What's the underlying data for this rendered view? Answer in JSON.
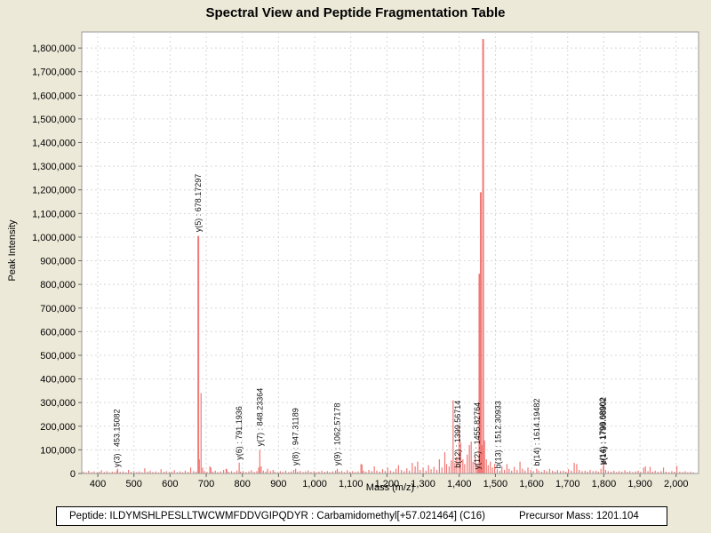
{
  "window": {
    "title": "Spectral View and Peptide Fragmentation Table"
  },
  "footer": {
    "peptide_label": "Peptide: ILDYMSHLPESLLTWCWMFDDVGIPQDYR : Carbamidomethyl[+57.021464] (C16)",
    "precursor_label": "Precursor Mass: 1201.104"
  },
  "colors": {
    "window_bg": "#ece9d8",
    "plot_bg": "#ffffff",
    "plot_border": "#9a9a9a",
    "grid": "#d8d8d8",
    "tick": "#666666",
    "peak": "#f07874",
    "annotation_text": "#111111"
  },
  "chart_data": {
    "type": "bar",
    "title": "Spectral View and Peptide Fragmentation Table",
    "xlabel": "Mass (m/z)",
    "ylabel": "Peak Intensity",
    "xlim": [
      355.7,
      2062
    ],
    "ylim": [
      0,
      1868000
    ],
    "x_ticks": [
      400,
      500,
      600,
      700,
      800,
      900,
      1000,
      1100,
      1200,
      1300,
      1400,
      1500,
      1600,
      1700,
      1800,
      1900,
      2000
    ],
    "y_ticks": [
      0,
      100000,
      200000,
      300000,
      400000,
      500000,
      600000,
      700000,
      800000,
      900000,
      1000000,
      1100000,
      1200000,
      1300000,
      1400000,
      1500000,
      1600000,
      1700000,
      1800000
    ],
    "grid": true,
    "legend": null,
    "annotations": [
      {
        "text": "y(3) : 453.15082",
        "mz": 453.15,
        "base": 15000
      },
      {
        "text": "y(5) : 678.17297",
        "mz": 678.17,
        "base": 1010000
      },
      {
        "text": "y(6) : 791.1936",
        "mz": 791.19,
        "base": 46000
      },
      {
        "text": "y(7) : 848.23364",
        "mz": 848.23,
        "base": 104000
      },
      {
        "text": "y(8) : 947.31189",
        "mz": 947.31,
        "base": 22000
      },
      {
        "text": "y(9) : 1062.57178",
        "mz": 1062.57,
        "base": 22000
      },
      {
        "text": "b(12) : 1399.56714",
        "mz": 1396.0,
        "base": 12000
      },
      {
        "text": "y(12) : 1455.82764",
        "mz": 1450.0,
        "base": 6000
      },
      {
        "text": "b(13) : 1512.30933",
        "mz": 1508.0,
        "base": 10000
      },
      {
        "text": "b(14) : 1614.19482",
        "mz": 1614.19,
        "base": 20000
      },
      {
        "text": "y(14) : 1798.68902",
        "mz": 1796.5,
        "base": 26000
      },
      {
        "text": "b(16) : 1799.08902",
        "mz": 1799.1,
        "base": 26000
      }
    ],
    "peaks": [
      [
        360,
        8000
      ],
      [
        368,
        5000
      ],
      [
        375,
        12000
      ],
      [
        383,
        6000
      ],
      [
        390,
        9000
      ],
      [
        398,
        5000
      ],
      [
        404,
        7000
      ],
      [
        410,
        14000
      ],
      [
        418,
        6000
      ],
      [
        425,
        10000
      ],
      [
        432,
        5000
      ],
      [
        440,
        8000
      ],
      [
        447,
        6000
      ],
      [
        453.15,
        12000
      ],
      [
        455,
        20000
      ],
      [
        462,
        7000
      ],
      [
        470,
        9000
      ],
      [
        478,
        5000
      ],
      [
        485,
        15000
      ],
      [
        492,
        7000
      ],
      [
        500,
        10000
      ],
      [
        508,
        6000
      ],
      [
        515,
        9000
      ],
      [
        523,
        5000
      ],
      [
        530,
        22000
      ],
      [
        538,
        8000
      ],
      [
        545,
        12000
      ],
      [
        552,
        6000
      ],
      [
        560,
        9000
      ],
      [
        568,
        5000
      ],
      [
        575,
        18000
      ],
      [
        583,
        7000
      ],
      [
        590,
        10000
      ],
      [
        598,
        6000
      ],
      [
        605,
        8000
      ],
      [
        612,
        14000
      ],
      [
        620,
        6000
      ],
      [
        628,
        9000
      ],
      [
        635,
        5000
      ],
      [
        642,
        12000
      ],
      [
        650,
        7000
      ],
      [
        657,
        25000
      ],
      [
        665,
        10000
      ],
      [
        672,
        8000
      ],
      [
        678.17,
        1005000
      ],
      [
        681,
        60000
      ],
      [
        685.7,
        340000
      ],
      [
        690,
        25000
      ],
      [
        695,
        10000
      ],
      [
        702,
        7000
      ],
      [
        710,
        30000
      ],
      [
        713,
        25000
      ],
      [
        718,
        8000
      ],
      [
        725,
        12000
      ],
      [
        732,
        6000
      ],
      [
        740,
        9000
      ],
      [
        748,
        15000
      ],
      [
        755,
        20000
      ],
      [
        757,
        18000
      ],
      [
        762,
        7000
      ],
      [
        770,
        10000
      ],
      [
        778,
        6000
      ],
      [
        785,
        12000
      ],
      [
        791.19,
        46000
      ],
      [
        795,
        8000
      ],
      [
        802,
        10000
      ],
      [
        810,
        6000
      ],
      [
        818,
        9000
      ],
      [
        825,
        14000
      ],
      [
        833,
        7000
      ],
      [
        840,
        10000
      ],
      [
        845,
        25000
      ],
      [
        848.23,
        100000
      ],
      [
        852,
        30000
      ],
      [
        858,
        12000
      ],
      [
        865,
        8000
      ],
      [
        870,
        20000
      ],
      [
        878,
        10000
      ],
      [
        885,
        15000
      ],
      [
        890,
        8000
      ],
      [
        898,
        6000
      ],
      [
        905,
        10000
      ],
      [
        912,
        7000
      ],
      [
        920,
        12000
      ],
      [
        928,
        6000
      ],
      [
        935,
        9000
      ],
      [
        942,
        15000
      ],
      [
        947.31,
        20000
      ],
      [
        953,
        8000
      ],
      [
        960,
        11000
      ],
      [
        968,
        6000
      ],
      [
        975,
        9000
      ],
      [
        982,
        13000
      ],
      [
        990,
        7000
      ],
      [
        998,
        10000
      ],
      [
        1005,
        6000
      ],
      [
        1012,
        8000
      ],
      [
        1020,
        12000
      ],
      [
        1028,
        7000
      ],
      [
        1035,
        10000
      ],
      [
        1042,
        6000
      ],
      [
        1050,
        9000
      ],
      [
        1058,
        12000
      ],
      [
        1062.57,
        20000
      ],
      [
        1068,
        8000
      ],
      [
        1075,
        11000
      ],
      [
        1082,
        6000
      ],
      [
        1090,
        14000
      ],
      [
        1098,
        8000
      ],
      [
        1105,
        10000
      ],
      [
        1112,
        6000
      ],
      [
        1120,
        9000
      ],
      [
        1128,
        40000
      ],
      [
        1131,
        38000
      ],
      [
        1135,
        12000
      ],
      [
        1142,
        8000
      ],
      [
        1150,
        15000
      ],
      [
        1158,
        10000
      ],
      [
        1165,
        30000
      ],
      [
        1172,
        12000
      ],
      [
        1180,
        8000
      ],
      [
        1188,
        18000
      ],
      [
        1195,
        10000
      ],
      [
        1202,
        25000
      ],
      [
        1210,
        12000
      ],
      [
        1218,
        8000
      ],
      [
        1225,
        20000
      ],
      [
        1232,
        35000
      ],
      [
        1240,
        15000
      ],
      [
        1248,
        10000
      ],
      [
        1255,
        22000
      ],
      [
        1262,
        12000
      ],
      [
        1270,
        45000
      ],
      [
        1278,
        30000
      ],
      [
        1285,
        50000
      ],
      [
        1292,
        15000
      ],
      [
        1300,
        25000
      ],
      [
        1308,
        12000
      ],
      [
        1315,
        35000
      ],
      [
        1322,
        18000
      ],
      [
        1330,
        28000
      ],
      [
        1338,
        15000
      ],
      [
        1345,
        60000
      ],
      [
        1352,
        25000
      ],
      [
        1360,
        90000
      ],
      [
        1365,
        40000
      ],
      [
        1372,
        30000
      ],
      [
        1378,
        55000
      ],
      [
        1383,
        310000
      ],
      [
        1388,
        45000
      ],
      [
        1393,
        70000
      ],
      [
        1399.57,
        200000
      ],
      [
        1404,
        130000
      ],
      [
        1410,
        60000
      ],
      [
        1415,
        40000
      ],
      [
        1422,
        80000
      ],
      [
        1428,
        120000
      ],
      [
        1433,
        135000
      ],
      [
        1438,
        50000
      ],
      [
        1444,
        70000
      ],
      [
        1449,
        40000
      ],
      [
        1452,
        30000
      ],
      [
        1455.83,
        845000
      ],
      [
        1459.5,
        1190000
      ],
      [
        1462,
        120000
      ],
      [
        1466,
        1838000
      ],
      [
        1470,
        140000
      ],
      [
        1475,
        60000
      ],
      [
        1480,
        35000
      ],
      [
        1486,
        50000
      ],
      [
        1492,
        25000
      ],
      [
        1498,
        40000
      ],
      [
        1505,
        18000
      ],
      [
        1512.31,
        12000
      ],
      [
        1518,
        30000
      ],
      [
        1525,
        15000
      ],
      [
        1532,
        40000
      ],
      [
        1538,
        20000
      ],
      [
        1545,
        12000
      ],
      [
        1552,
        28000
      ],
      [
        1560,
        15000
      ],
      [
        1568,
        50000
      ],
      [
        1575,
        20000
      ],
      [
        1582,
        12000
      ],
      [
        1590,
        25000
      ],
      [
        1598,
        15000
      ],
      [
        1605,
        10000
      ],
      [
        1614.19,
        20000
      ],
      [
        1620,
        12000
      ],
      [
        1628,
        8000
      ],
      [
        1635,
        15000
      ],
      [
        1642,
        10000
      ],
      [
        1650,
        20000
      ],
      [
        1658,
        12000
      ],
      [
        1665,
        8000
      ],
      [
        1672,
        15000
      ],
      [
        1680,
        10000
      ],
      [
        1688,
        12000
      ],
      [
        1695,
        8000
      ],
      [
        1702,
        18000
      ],
      [
        1710,
        12000
      ],
      [
        1718,
        45000
      ],
      [
        1725,
        40000
      ],
      [
        1732,
        15000
      ],
      [
        1740,
        10000
      ],
      [
        1748,
        12000
      ],
      [
        1755,
        8000
      ],
      [
        1762,
        15000
      ],
      [
        1770,
        10000
      ],
      [
        1778,
        12000
      ],
      [
        1785,
        8000
      ],
      [
        1792,
        20000
      ],
      [
        1798.69,
        30000
      ],
      [
        1799.71,
        55000
      ],
      [
        1805,
        15000
      ],
      [
        1812,
        10000
      ],
      [
        1820,
        8000
      ],
      [
        1828,
        12000
      ],
      [
        1835,
        6000
      ],
      [
        1842,
        10000
      ],
      [
        1850,
        8000
      ],
      [
        1858,
        14000
      ],
      [
        1865,
        7000
      ],
      [
        1872,
        10000
      ],
      [
        1880,
        6000
      ],
      [
        1888,
        9000
      ],
      [
        1895,
        12000
      ],
      [
        1902,
        7000
      ],
      [
        1910,
        25000
      ],
      [
        1915,
        30000
      ],
      [
        1922,
        10000
      ],
      [
        1928,
        28000
      ],
      [
        1935,
        8000
      ],
      [
        1942,
        12000
      ],
      [
        1950,
        7000
      ],
      [
        1958,
        10000
      ],
      [
        1965,
        25000
      ],
      [
        1972,
        8000
      ],
      [
        1980,
        6000
      ],
      [
        1988,
        10000
      ],
      [
        1995,
        7000
      ],
      [
        2002,
        32000
      ],
      [
        2010,
        8000
      ],
      [
        2018,
        6000
      ],
      [
        2025,
        10000
      ],
      [
        2032,
        5000
      ],
      [
        2040,
        8000
      ],
      [
        2048,
        5000
      ]
    ]
  }
}
